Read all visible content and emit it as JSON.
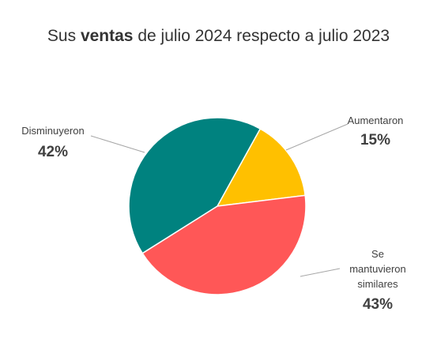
{
  "title": {
    "prefix": "Sus",
    "bold": "ventas",
    "suffix": "de julio 2024 respecto a julio 2023"
  },
  "chart_data": {
    "type": "pie",
    "title": "Sus ventas de julio 2024 respecto a julio 2023",
    "slices": [
      {
        "label": "Aumentaron",
        "value": 15,
        "display": "15%",
        "color": "#FFC000"
      },
      {
        "label": "Se mantuvieron similares",
        "value": 43,
        "display": "43%",
        "color": "#FF5757"
      },
      {
        "label": "Disminuyeron",
        "value": 42,
        "display": "42%",
        "color": "#00827F"
      }
    ],
    "legend": "none",
    "data_labels": "outside with leader lines"
  }
}
